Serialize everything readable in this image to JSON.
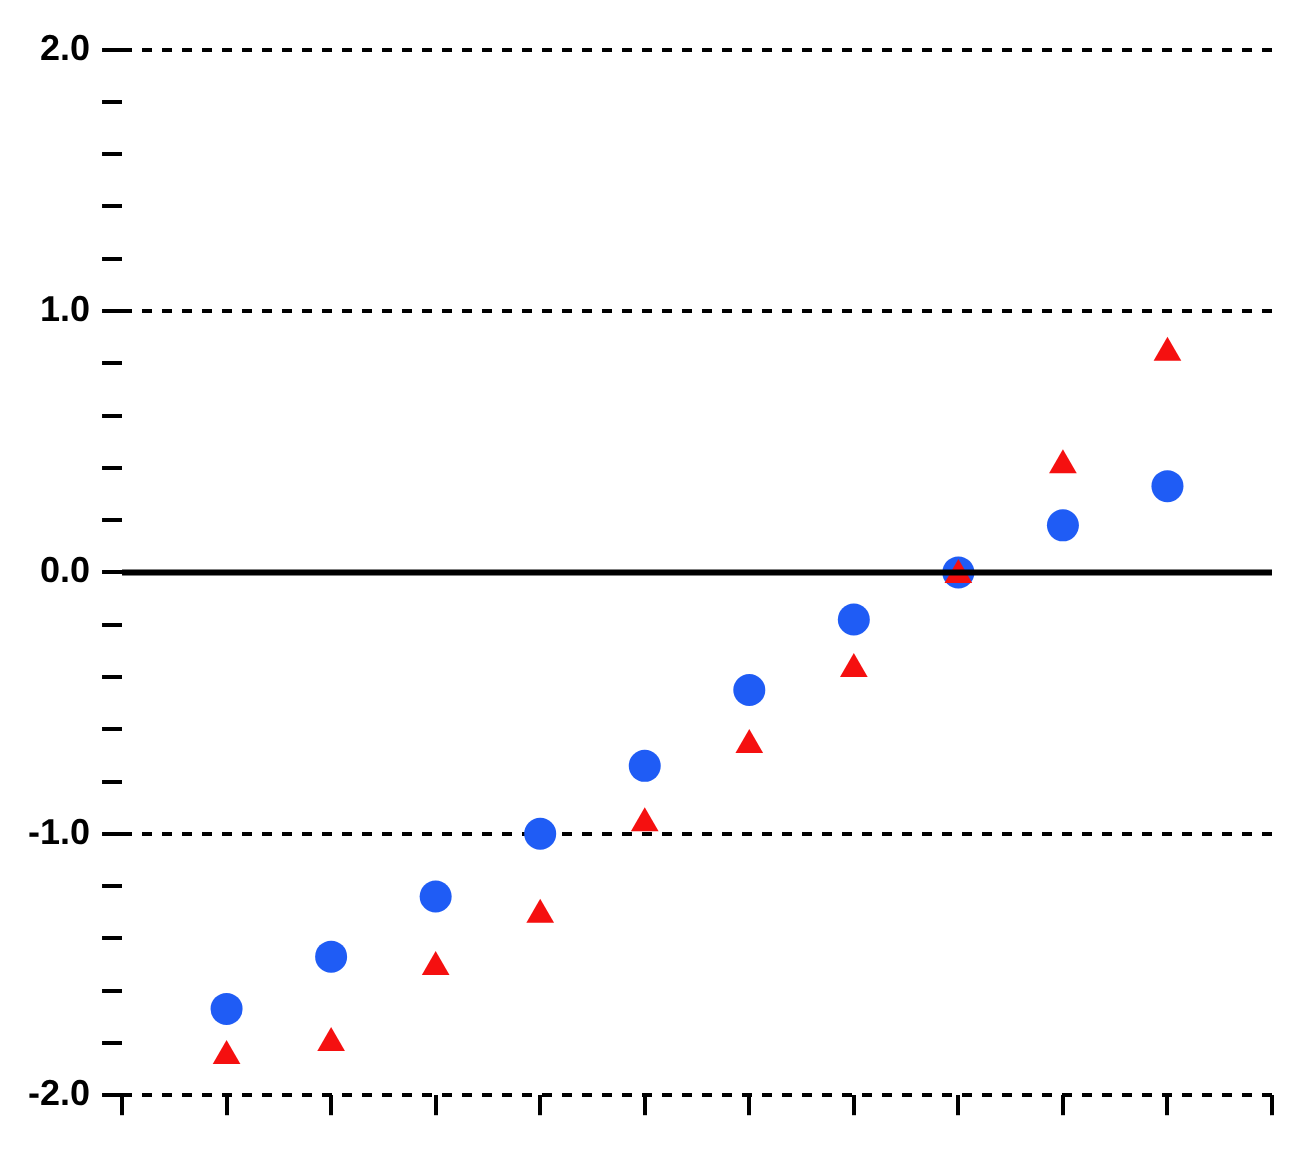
{
  "chart_data": {
    "type": "scatter",
    "categories": [
      null,
      null,
      null,
      null,
      null,
      null,
      null,
      null,
      null,
      null,
      null,
      null
    ],
    "series": [
      {
        "color": "#1f5cf5",
        "marker": "circle",
        "values": [
          null,
          -1.67,
          -1.47,
          -1.24,
          -1.0,
          -0.74,
          -0.45,
          -0.18,
          0.0,
          0.18,
          0.33,
          null
        ]
      },
      {
        "color": "#f51010",
        "marker": "triangle",
        "values": [
          null,
          -1.85,
          -1.8,
          -1.51,
          -1.31,
          -0.96,
          -0.66,
          -0.37,
          -0.01,
          0.41,
          0.84,
          null
        ]
      }
    ],
    "ylim": [
      -2,
      2
    ],
    "yticks": [
      {
        "value": -2,
        "label": "-2.0"
      },
      {
        "value": -1.8,
        "label": null
      },
      {
        "value": -1.6,
        "label": null
      },
      {
        "value": -1.4,
        "label": null
      },
      {
        "value": -1.2,
        "label": null
      },
      {
        "value": -1,
        "label": "-1.0"
      },
      {
        "value": -0.8,
        "label": null
      },
      {
        "value": -0.6,
        "label": null
      },
      {
        "value": -0.4,
        "label": null
      },
      {
        "value": -0.2,
        "label": null
      },
      {
        "value": 0,
        "label": "0.0"
      },
      {
        "value": 0.2,
        "label": null
      },
      {
        "value": 0.4,
        "label": null
      },
      {
        "value": 0.6,
        "label": null
      },
      {
        "value": 0.8,
        "label": null
      },
      {
        "value": 1,
        "label": "1.0"
      },
      {
        "value": 1.2,
        "label": null
      },
      {
        "value": 1.4,
        "label": null
      },
      {
        "value": 1.6,
        "label": null
      },
      {
        "value": 1.8,
        "label": null
      },
      {
        "value": 2,
        "label": "2.0"
      }
    ],
    "ref_lines": [
      {
        "axis": "y",
        "value": 0,
        "color": "#000000",
        "line_style": "solid"
      }
    ],
    "grid": "y",
    "line_style": "dashed",
    "legend": false
  }
}
